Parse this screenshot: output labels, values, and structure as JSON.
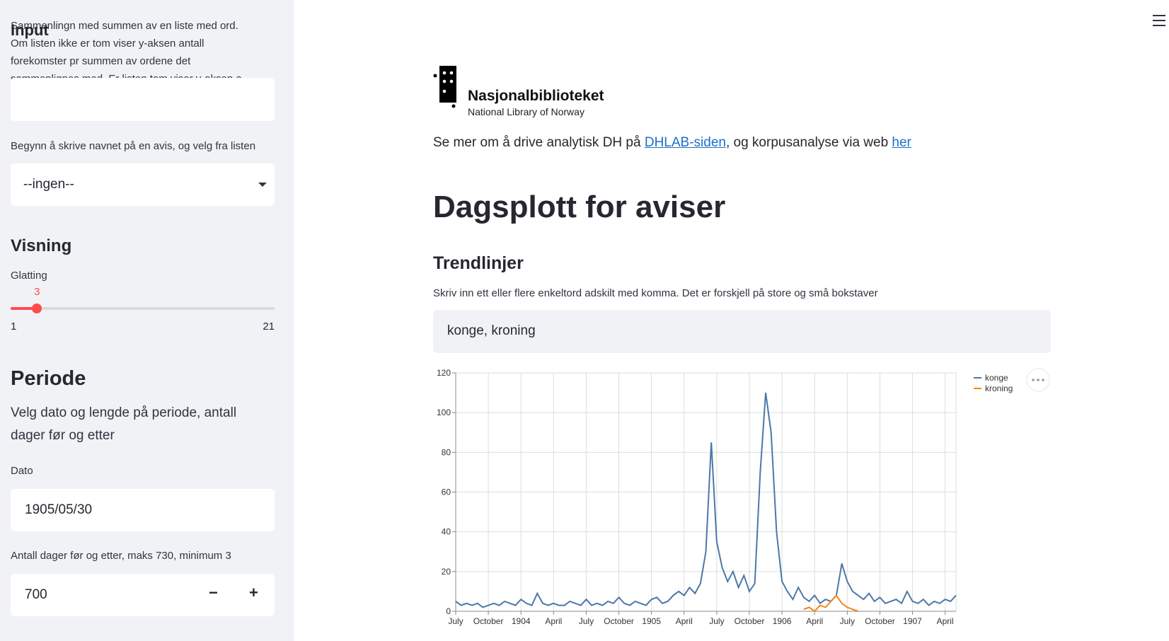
{
  "sidebar": {
    "input_help": "Sammenlingn med summen av en liste med ord. Om listen ikke er tom viser y-aksen antall forekomster pr summen av ordene det sammenlignes med. Er listen tom viser y-aksen a",
    "input_title": "Input",
    "avis_label": "Begynn å skrive navnet på en avis, og velg fra listen",
    "avis_value": "--ingen--",
    "visning_title": "Visning",
    "glatting_label": "Glatting",
    "glatting_value": 3,
    "glatting_min": 1,
    "glatting_max": 21,
    "periode_title": "Periode",
    "periode_text": "Velg dato og lengde på periode, antall dager før og etter",
    "dato_label": "Dato",
    "dato_value": "1905/05/30",
    "dager_label": "Antall dager før og etter, maks 730, minimum 3",
    "dager_value": 700
  },
  "main": {
    "logo_name": "Nasjonalbiblioteket",
    "logo_sub": "National Library of Norway",
    "intro_before": "Se mer om å drive analytisk DH på ",
    "link1": "DHLAB-siden",
    "intro_middle": ", og korpusanalyse via web ",
    "link2": "her",
    "title": "Dagsplott for aviser",
    "subtitle": "Trendlinjer",
    "words_label": "Skriv inn ett eller flere enkeltord adskilt med komma. Det er forskjell på store og små bokstaver",
    "words_value": "konge, kroning"
  },
  "chart_data": {
    "type": "line",
    "x": [
      0,
      0.5,
      1,
      1.5,
      2,
      2.5,
      3,
      3.5,
      4,
      4.5,
      5,
      5.5,
      6,
      6.5,
      7,
      7.5,
      8,
      8.5,
      9,
      9.5,
      10,
      10.5,
      11,
      11.5,
      12,
      12.5,
      13,
      13.5,
      14,
      14.5,
      15,
      15.5,
      16,
      16.5,
      17,
      17.5,
      18,
      18.5,
      19,
      19.5,
      20,
      20.5,
      21,
      21.5,
      22,
      22.5,
      23,
      23.5,
      24,
      24.5,
      25,
      25.5,
      26,
      26.5,
      27,
      27.5,
      28,
      28.5,
      29,
      29.5,
      30,
      30.5,
      31,
      31.5,
      32,
      32.5,
      33,
      33.5,
      34,
      34.5,
      35,
      35.5,
      36,
      36.5,
      37,
      37.5,
      38,
      38.5,
      39,
      39.5,
      40,
      40.5,
      41,
      41.5,
      42,
      42.5,
      43,
      43.5,
      44,
      44.5,
      45,
      45.5,
      46
    ],
    "series": [
      {
        "name": "konge",
        "color": "#4c78a8",
        "values": [
          5,
          3,
          4,
          3,
          4,
          2,
          3,
          4,
          3,
          5,
          4,
          3,
          6,
          4,
          3,
          9,
          4,
          3,
          4,
          3,
          3,
          5,
          4,
          3,
          6,
          3,
          4,
          3,
          5,
          4,
          7,
          4,
          3,
          5,
          4,
          3,
          6,
          7,
          4,
          5,
          8,
          10,
          8,
          12,
          9,
          14,
          30,
          85,
          35,
          22,
          15,
          20,
          12,
          18,
          10,
          14,
          70,
          110,
          90,
          40,
          15,
          10,
          6,
          12,
          7,
          5,
          8,
          4,
          6,
          5,
          8,
          24,
          15,
          10,
          8,
          6,
          9,
          5,
          7,
          4,
          5,
          6,
          4,
          10,
          5,
          4,
          6,
          3,
          5,
          4,
          6,
          5,
          8
        ]
      },
      {
        "name": "kroning",
        "color": "#f58518",
        "values": [
          null,
          null,
          null,
          null,
          null,
          null,
          null,
          null,
          null,
          null,
          null,
          null,
          null,
          null,
          null,
          null,
          null,
          null,
          null,
          null,
          null,
          null,
          null,
          null,
          null,
          null,
          null,
          null,
          null,
          null,
          null,
          null,
          null,
          null,
          null,
          null,
          null,
          null,
          null,
          null,
          null,
          null,
          null,
          null,
          null,
          null,
          null,
          null,
          null,
          null,
          null,
          null,
          null,
          null,
          null,
          null,
          null,
          null,
          null,
          null,
          null,
          null,
          null,
          null,
          1,
          2,
          0,
          3,
          2,
          5,
          8,
          4,
          2,
          1,
          0,
          null,
          null,
          null,
          null,
          null,
          null,
          null,
          null,
          null,
          null,
          null,
          null,
          null,
          null,
          null,
          null,
          null,
          null
        ]
      }
    ],
    "xlim": [
      0,
      46
    ],
    "xticks": [
      {
        "value": 0,
        "label": "July"
      },
      {
        "value": 3,
        "label": "October"
      },
      {
        "value": 6,
        "label": "1904"
      },
      {
        "value": 9,
        "label": "April"
      },
      {
        "value": 12,
        "label": "July"
      },
      {
        "value": 15,
        "label": "October"
      },
      {
        "value": 18,
        "label": "1905"
      },
      {
        "value": 21,
        "label": "April"
      },
      {
        "value": 24,
        "label": "July"
      },
      {
        "value": 27,
        "label": "October"
      },
      {
        "value": 30,
        "label": "1906"
      },
      {
        "value": 33,
        "label": "April"
      },
      {
        "value": 36,
        "label": "July"
      },
      {
        "value": 39,
        "label": "October"
      },
      {
        "value": 42,
        "label": "1907"
      },
      {
        "value": 45,
        "label": "April"
      }
    ],
    "ylim": [
      0,
      120
    ],
    "yticks": [
      0,
      20,
      40,
      60,
      80,
      100,
      120
    ],
    "grid": true,
    "legend": "right"
  }
}
